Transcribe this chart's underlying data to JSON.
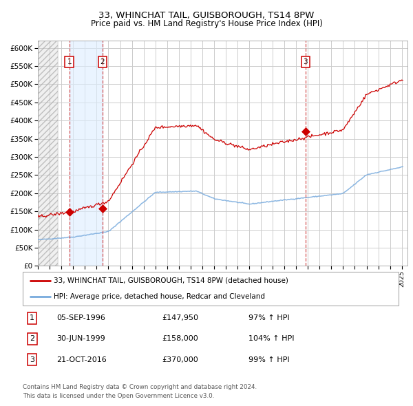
{
  "title": "33, WHINCHAT TAIL, GUISBOROUGH, TS14 8PW",
  "subtitle": "Price paid vs. HM Land Registry's House Price Index (HPI)",
  "legend_label_red": "33, WHINCHAT TAIL, GUISBOROUGH, TS14 8PW (detached house)",
  "legend_label_blue": "HPI: Average price, detached house, Redcar and Cleveland",
  "footer_line1": "Contains HM Land Registry data © Crown copyright and database right 2024.",
  "footer_line2": "This data is licensed under the Open Government Licence v3.0.",
  "sale_points": [
    {
      "label": "1",
      "date_x": 1996.67,
      "price": 147950,
      "date_str": "05-SEP-1996",
      "price_str": "£147,950",
      "pct_str": "97% ↑ HPI"
    },
    {
      "label": "2",
      "date_x": 1999.5,
      "price": 158000,
      "date_str": "30-JUN-1999",
      "price_str": "£158,000",
      "pct_str": "104% ↑ HPI"
    },
    {
      "label": "3",
      "date_x": 2016.8,
      "price": 370000,
      "date_str": "21-OCT-2016",
      "price_str": "£370,000",
      "pct_str": "99% ↑ HPI"
    }
  ],
  "xmin": 1994.0,
  "xmax": 2025.5,
  "ymin": 0,
  "ymax": 620000,
  "yticks": [
    0,
    50000,
    100000,
    150000,
    200000,
    250000,
    300000,
    350000,
    400000,
    450000,
    500000,
    550000,
    600000
  ],
  "background_color": "#ffffff",
  "plot_bg_color": "#ffffff",
  "grid_color": "#cccccc",
  "red_line_color": "#cc0000",
  "blue_line_color": "#77aadd",
  "sale_marker_color": "#cc0000",
  "vline_color": "#cc3333",
  "shade_color": "#ddeeff",
  "hatch_color": "#bbbbbb"
}
